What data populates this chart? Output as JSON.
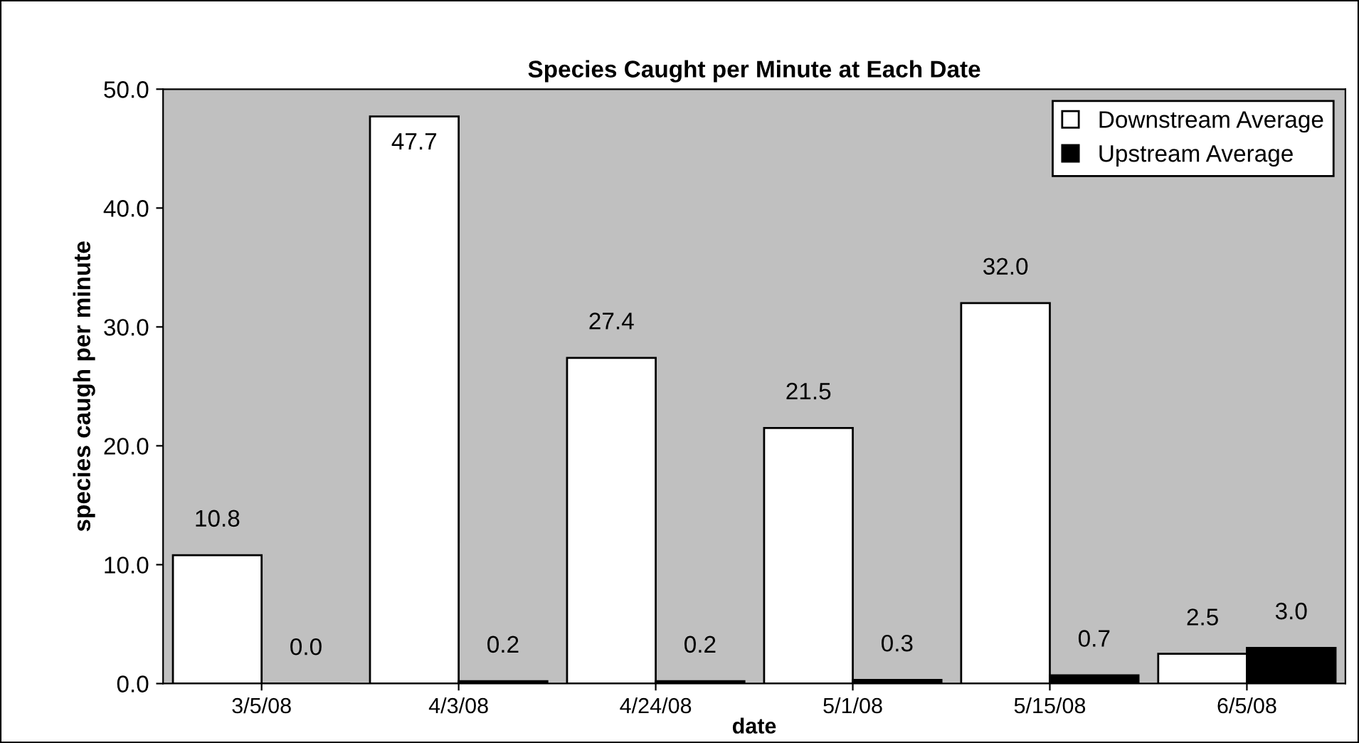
{
  "chart_data": {
    "type": "bar",
    "title": "Species Caught per Minute at Each Date",
    "xlabel": "date",
    "ylabel": "species caugh per minute",
    "categories": [
      "3/5/08",
      "4/3/08",
      "4/24/08",
      "5/1/08",
      "5/15/08",
      "6/5/08"
    ],
    "series": [
      {
        "name": "Downstream Average",
        "color": "#ffffff",
        "values": [
          10.8,
          47.7,
          27.4,
          21.5,
          32.0,
          2.5
        ],
        "value_labels": [
          "10.8",
          "47.7",
          "27.4",
          "21.5",
          "32.0",
          "2.5"
        ]
      },
      {
        "name": "Upstream Average",
        "color": "#000000",
        "values": [
          0.0,
          0.2,
          0.2,
          0.3,
          0.7,
          3.0
        ],
        "value_labels": [
          "0.0",
          "0.2",
          "0.2",
          "0.3",
          "0.7",
          "3.0"
        ]
      }
    ],
    "ylim": [
      0,
      50
    ],
    "yticks": [
      {
        "value": 0,
        "label": "0.0"
      },
      {
        "value": 10,
        "label": "10.0"
      },
      {
        "value": 20,
        "label": "20.0"
      },
      {
        "value": 30,
        "label": "30.0"
      },
      {
        "value": 40,
        "label": "40.0"
      },
      {
        "value": 50,
        "label": "50.0"
      }
    ],
    "legend": "top right",
    "grid": false
  }
}
